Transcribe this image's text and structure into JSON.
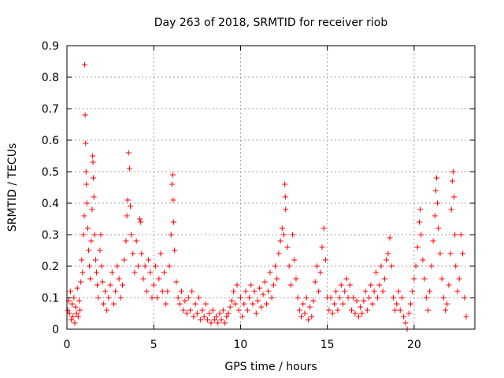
{
  "chart_data": {
    "type": "scatter",
    "title": "Day 263 of 2018, SRMTID for receiver riob",
    "xlabel": "GPS time / hours",
    "ylabel": "SRMTID / TECUs",
    "xlim": [
      0,
      23.5
    ],
    "ylim": [
      0,
      0.9
    ],
    "xticks": [
      0,
      5,
      10,
      15,
      20
    ],
    "yticks": [
      0,
      0.1,
      0.2,
      0.3,
      0.4,
      0.5,
      0.6,
      0.7,
      0.8,
      0.9
    ],
    "xtick_labels": [
      "0",
      "5",
      "10",
      "15",
      "20"
    ],
    "ytick_labels": [
      "0",
      "0.1",
      "0.2",
      "0.3",
      "0.4",
      "0.5",
      "0.6",
      "0.7",
      "0.8",
      "0.9"
    ],
    "grid": true,
    "marker": "+",
    "color": "#ff0000",
    "series": [
      {
        "name": "SRMTID",
        "points": [
          [
            0.05,
            0.06
          ],
          [
            0.1,
            0.09
          ],
          [
            0.15,
            0.05
          ],
          [
            0.2,
            0.12
          ],
          [
            0.25,
            0.03
          ],
          [
            0.3,
            0.08
          ],
          [
            0.35,
            0.04
          ],
          [
            0.4,
            0.1
          ],
          [
            0.45,
            0.02
          ],
          [
            0.5,
            0.07
          ],
          [
            0.55,
            0.05
          ],
          [
            0.6,
            0.13
          ],
          [
            0.65,
            0.04
          ],
          [
            0.7,
            0.09
          ],
          [
            0.75,
            0.06
          ],
          [
            0.8,
            0.15
          ],
          [
            0.85,
            0.22
          ],
          [
            0.9,
            0.18
          ],
          [
            0.95,
            0.3
          ],
          [
            1.0,
            0.36
          ],
          [
            1.02,
            0.84
          ],
          [
            1.05,
            0.68
          ],
          [
            1.08,
            0.59
          ],
          [
            1.1,
            0.5
          ],
          [
            1.12,
            0.46
          ],
          [
            1.15,
            0.4
          ],
          [
            1.2,
            0.32
          ],
          [
            1.25,
            0.25
          ],
          [
            1.3,
            0.2
          ],
          [
            1.35,
            0.16
          ],
          [
            1.4,
            0.28
          ],
          [
            1.45,
            0.38
          ],
          [
            1.48,
            0.55
          ],
          [
            1.5,
            0.53
          ],
          [
            1.52,
            0.48
          ],
          [
            1.55,
            0.42
          ],
          [
            1.6,
            0.3
          ],
          [
            1.65,
            0.22
          ],
          [
            1.7,
            0.18
          ],
          [
            1.75,
            0.14
          ],
          [
            1.8,
            0.1
          ],
          [
            1.9,
            0.25
          ],
          [
            1.95,
            0.3
          ],
          [
            2.0,
            0.2
          ],
          [
            2.05,
            0.15
          ],
          [
            2.1,
            0.08
          ],
          [
            2.2,
            0.12
          ],
          [
            2.3,
            0.06
          ],
          [
            2.4,
            0.1
          ],
          [
            2.5,
            0.14
          ],
          [
            2.6,
            0.18
          ],
          [
            2.7,
            0.08
          ],
          [
            2.8,
            0.12
          ],
          [
            2.9,
            0.2
          ],
          [
            3.0,
            0.16
          ],
          [
            3.1,
            0.1
          ],
          [
            3.2,
            0.14
          ],
          [
            3.3,
            0.22
          ],
          [
            3.4,
            0.28
          ],
          [
            3.45,
            0.36
          ],
          [
            3.5,
            0.41
          ],
          [
            3.55,
            0.56
          ],
          [
            3.6,
            0.51
          ],
          [
            3.65,
            0.39
          ],
          [
            3.7,
            0.3
          ],
          [
            3.8,
            0.24
          ],
          [
            3.9,
            0.18
          ],
          [
            4.0,
            0.28
          ],
          [
            4.1,
            0.2
          ],
          [
            4.2,
            0.35
          ],
          [
            4.25,
            0.34
          ],
          [
            4.3,
            0.24
          ],
          [
            4.4,
            0.16
          ],
          [
            4.5,
            0.2
          ],
          [
            4.6,
            0.12
          ],
          [
            4.7,
            0.22
          ],
          [
            4.8,
            0.18
          ],
          [
            4.9,
            0.1
          ],
          [
            5.0,
            0.14
          ],
          [
            5.1,
            0.2
          ],
          [
            5.2,
            0.1
          ],
          [
            5.3,
            0.16
          ],
          [
            5.4,
            0.24
          ],
          [
            5.5,
            0.12
          ],
          [
            5.6,
            0.18
          ],
          [
            5.7,
            0.08
          ],
          [
            5.8,
            0.12
          ],
          [
            5.9,
            0.2
          ],
          [
            6.0,
            0.3
          ],
          [
            6.05,
            0.46
          ],
          [
            6.1,
            0.49
          ],
          [
            6.12,
            0.41
          ],
          [
            6.15,
            0.34
          ],
          [
            6.2,
            0.25
          ],
          [
            6.3,
            0.15
          ],
          [
            6.4,
            0.1
          ],
          [
            6.5,
            0.08
          ],
          [
            6.6,
            0.12
          ],
          [
            6.7,
            0.06
          ],
          [
            6.8,
            0.09
          ],
          [
            6.9,
            0.05
          ],
          [
            7.0,
            0.1
          ],
          [
            7.1,
            0.06
          ],
          [
            7.2,
            0.12
          ],
          [
            7.3,
            0.04
          ],
          [
            7.4,
            0.08
          ],
          [
            7.5,
            0.05
          ],
          [
            7.6,
            0.1
          ],
          [
            7.7,
            0.03
          ],
          [
            7.8,
            0.06
          ],
          [
            7.9,
            0.04
          ],
          [
            8.0,
            0.08
          ],
          [
            8.1,
            0.03
          ],
          [
            8.2,
            0.05
          ],
          [
            8.3,
            0.02
          ],
          [
            8.4,
            0.06
          ],
          [
            8.5,
            0.03
          ],
          [
            8.6,
            0.04
          ],
          [
            8.7,
            0.02
          ],
          [
            8.8,
            0.05
          ],
          [
            8.9,
            0.03
          ],
          [
            9.0,
            0.06
          ],
          [
            9.1,
            0.02
          ],
          [
            9.2,
            0.04
          ],
          [
            9.3,
            0.05
          ],
          [
            9.4,
            0.07
          ],
          [
            9.5,
            0.09
          ],
          [
            9.6,
            0.12
          ],
          [
            9.7,
            0.08
          ],
          [
            9.8,
            0.14
          ],
          [
            9.9,
            0.06
          ],
          [
            10.0,
            0.1
          ],
          [
            10.1,
            0.04
          ],
          [
            10.2,
            0.08
          ],
          [
            10.3,
            0.12
          ],
          [
            10.4,
            0.06
          ],
          [
            10.5,
            0.1
          ],
          [
            10.6,
            0.14
          ],
          [
            10.7,
            0.08
          ],
          [
            10.8,
            0.12
          ],
          [
            10.9,
            0.05
          ],
          [
            11.0,
            0.09
          ],
          [
            11.1,
            0.13
          ],
          [
            11.2,
            0.07
          ],
          [
            11.3,
            0.11
          ],
          [
            11.4,
            0.15
          ],
          [
            11.5,
            0.08
          ],
          [
            11.6,
            0.12
          ],
          [
            11.7,
            0.18
          ],
          [
            11.8,
            0.1
          ],
          [
            11.9,
            0.14
          ],
          [
            12.0,
            0.2
          ],
          [
            12.1,
            0.16
          ],
          [
            12.2,
            0.24
          ],
          [
            12.3,
            0.28
          ],
          [
            12.4,
            0.32
          ],
          [
            12.5,
            0.3
          ],
          [
            12.55,
            0.46
          ],
          [
            12.58,
            0.42
          ],
          [
            12.6,
            0.38
          ],
          [
            12.7,
            0.26
          ],
          [
            12.8,
            0.2
          ],
          [
            12.9,
            0.14
          ],
          [
            13.0,
            0.3
          ],
          [
            13.1,
            0.22
          ],
          [
            13.2,
            0.16
          ],
          [
            13.3,
            0.1
          ],
          [
            13.4,
            0.06
          ],
          [
            13.5,
            0.04
          ],
          [
            13.6,
            0.08
          ],
          [
            13.7,
            0.05
          ],
          [
            13.8,
            0.1
          ],
          [
            13.9,
            0.03
          ],
          [
            14.0,
            0.07
          ],
          [
            14.1,
            0.04
          ],
          [
            14.2,
            0.09
          ],
          [
            14.3,
            0.15
          ],
          [
            14.4,
            0.2
          ],
          [
            14.5,
            0.12
          ],
          [
            14.6,
            0.18
          ],
          [
            14.7,
            0.26
          ],
          [
            14.8,
            0.32
          ],
          [
            14.9,
            0.22
          ],
          [
            15.0,
            0.1
          ],
          [
            15.1,
            0.06
          ],
          [
            15.2,
            0.1
          ],
          [
            15.3,
            0.05
          ],
          [
            15.4,
            0.08
          ],
          [
            15.5,
            0.12
          ],
          [
            15.6,
            0.06
          ],
          [
            15.7,
            0.1
          ],
          [
            15.8,
            0.14
          ],
          [
            15.9,
            0.08
          ],
          [
            16.0,
            0.12
          ],
          [
            16.1,
            0.16
          ],
          [
            16.2,
            0.1
          ],
          [
            16.3,
            0.14
          ],
          [
            16.4,
            0.06
          ],
          [
            16.5,
            0.1
          ],
          [
            16.6,
            0.05
          ],
          [
            16.7,
            0.09
          ],
          [
            16.8,
            0.04
          ],
          [
            16.9,
            0.07
          ],
          [
            17.0,
            0.05
          ],
          [
            17.1,
            0.09
          ],
          [
            17.2,
            0.12
          ],
          [
            17.3,
            0.06
          ],
          [
            17.4,
            0.1
          ],
          [
            17.5,
            0.14
          ],
          [
            17.6,
            0.08
          ],
          [
            17.7,
            0.12
          ],
          [
            17.8,
            0.18
          ],
          [
            17.9,
            0.1
          ],
          [
            18.0,
            0.14
          ],
          [
            18.1,
            0.2
          ],
          [
            18.2,
            0.12
          ],
          [
            18.3,
            0.16
          ],
          [
            18.4,
            0.22
          ],
          [
            18.5,
            0.24
          ],
          [
            18.6,
            0.29
          ],
          [
            18.7,
            0.2
          ],
          [
            18.8,
            0.1
          ],
          [
            18.9,
            0.06
          ],
          [
            19.0,
            0.08
          ],
          [
            19.1,
            0.12
          ],
          [
            19.2,
            0.06
          ],
          [
            19.3,
            0.1
          ],
          [
            19.4,
            0.04
          ],
          [
            19.5,
            0.02
          ],
          [
            19.6,
            0.0
          ],
          [
            19.7,
            0.05
          ],
          [
            19.8,
            0.08
          ],
          [
            19.9,
            0.12
          ],
          [
            20.0,
            0.16
          ],
          [
            20.1,
            0.2
          ],
          [
            20.2,
            0.26
          ],
          [
            20.3,
            0.34
          ],
          [
            20.35,
            0.38
          ],
          [
            20.4,
            0.3
          ],
          [
            20.5,
            0.22
          ],
          [
            20.6,
            0.16
          ],
          [
            20.7,
            0.1
          ],
          [
            20.8,
            0.06
          ],
          [
            20.9,
            0.12
          ],
          [
            21.0,
            0.2
          ],
          [
            21.1,
            0.28
          ],
          [
            21.2,
            0.36
          ],
          [
            21.25,
            0.44
          ],
          [
            21.3,
            0.48
          ],
          [
            21.35,
            0.4
          ],
          [
            21.4,
            0.32
          ],
          [
            21.5,
            0.24
          ],
          [
            21.6,
            0.16
          ],
          [
            21.7,
            0.1
          ],
          [
            21.8,
            0.06
          ],
          [
            21.9,
            0.08
          ],
          [
            22.0,
            0.14
          ],
          [
            22.1,
            0.24
          ],
          [
            22.15,
            0.38
          ],
          [
            22.2,
            0.47
          ],
          [
            22.25,
            0.5
          ],
          [
            22.3,
            0.42
          ],
          [
            22.35,
            0.3
          ],
          [
            22.4,
            0.2
          ],
          [
            22.5,
            0.12
          ],
          [
            22.6,
            0.16
          ],
          [
            22.7,
            0.3
          ],
          [
            22.8,
            0.24
          ],
          [
            22.9,
            0.1
          ],
          [
            23.0,
            0.04
          ]
        ]
      }
    ]
  }
}
